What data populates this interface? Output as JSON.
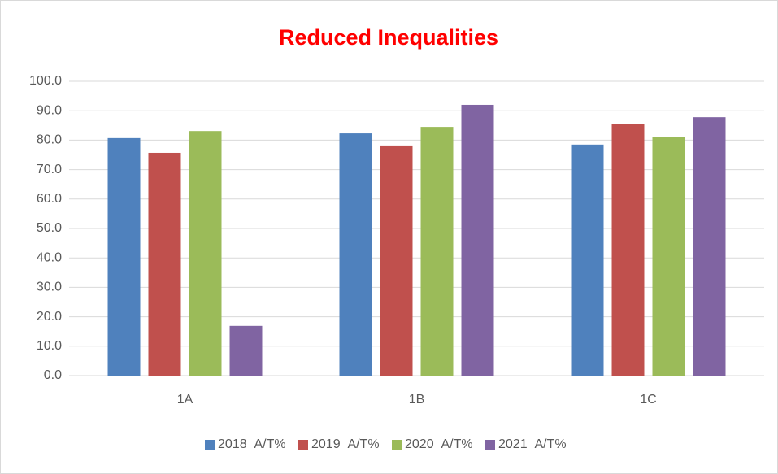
{
  "chart_data": {
    "type": "bar",
    "title": "Reduced Inequalities",
    "categories": [
      "1A",
      "1B",
      "1C"
    ],
    "series": [
      {
        "name": "2018_A/T%",
        "color": "#4f81bd",
        "values": [
          80.7,
          82.3,
          78.5
        ]
      },
      {
        "name": "2019_A/T%",
        "color": "#c0504d",
        "values": [
          75.7,
          78.2,
          85.6
        ]
      },
      {
        "name": "2020_A/T%",
        "color": "#9bbb59",
        "values": [
          83.1,
          84.5,
          81.2
        ]
      },
      {
        "name": "2021_A/T%",
        "color": "#8064a2",
        "values": [
          16.9,
          92.0,
          87.8
        ]
      }
    ],
    "ylim": [
      0,
      100
    ],
    "yticks": [
      {
        "value": 0,
        "label": "0.0"
      },
      {
        "value": 10,
        "label": "10.0"
      },
      {
        "value": 20,
        "label": "20.0"
      },
      {
        "value": 30,
        "label": "30.0"
      },
      {
        "value": 40,
        "label": "40.0"
      },
      {
        "value": 50,
        "label": "50.0"
      },
      {
        "value": 60,
        "label": "60.0"
      },
      {
        "value": 70,
        "label": "70.0"
      },
      {
        "value": 80,
        "label": "80.0"
      },
      {
        "value": 90,
        "label": "90.0"
      },
      {
        "value": 100,
        "label": "100.0"
      }
    ],
    "grid": true,
    "legend": "bottom",
    "title_color": "#ff0000"
  }
}
